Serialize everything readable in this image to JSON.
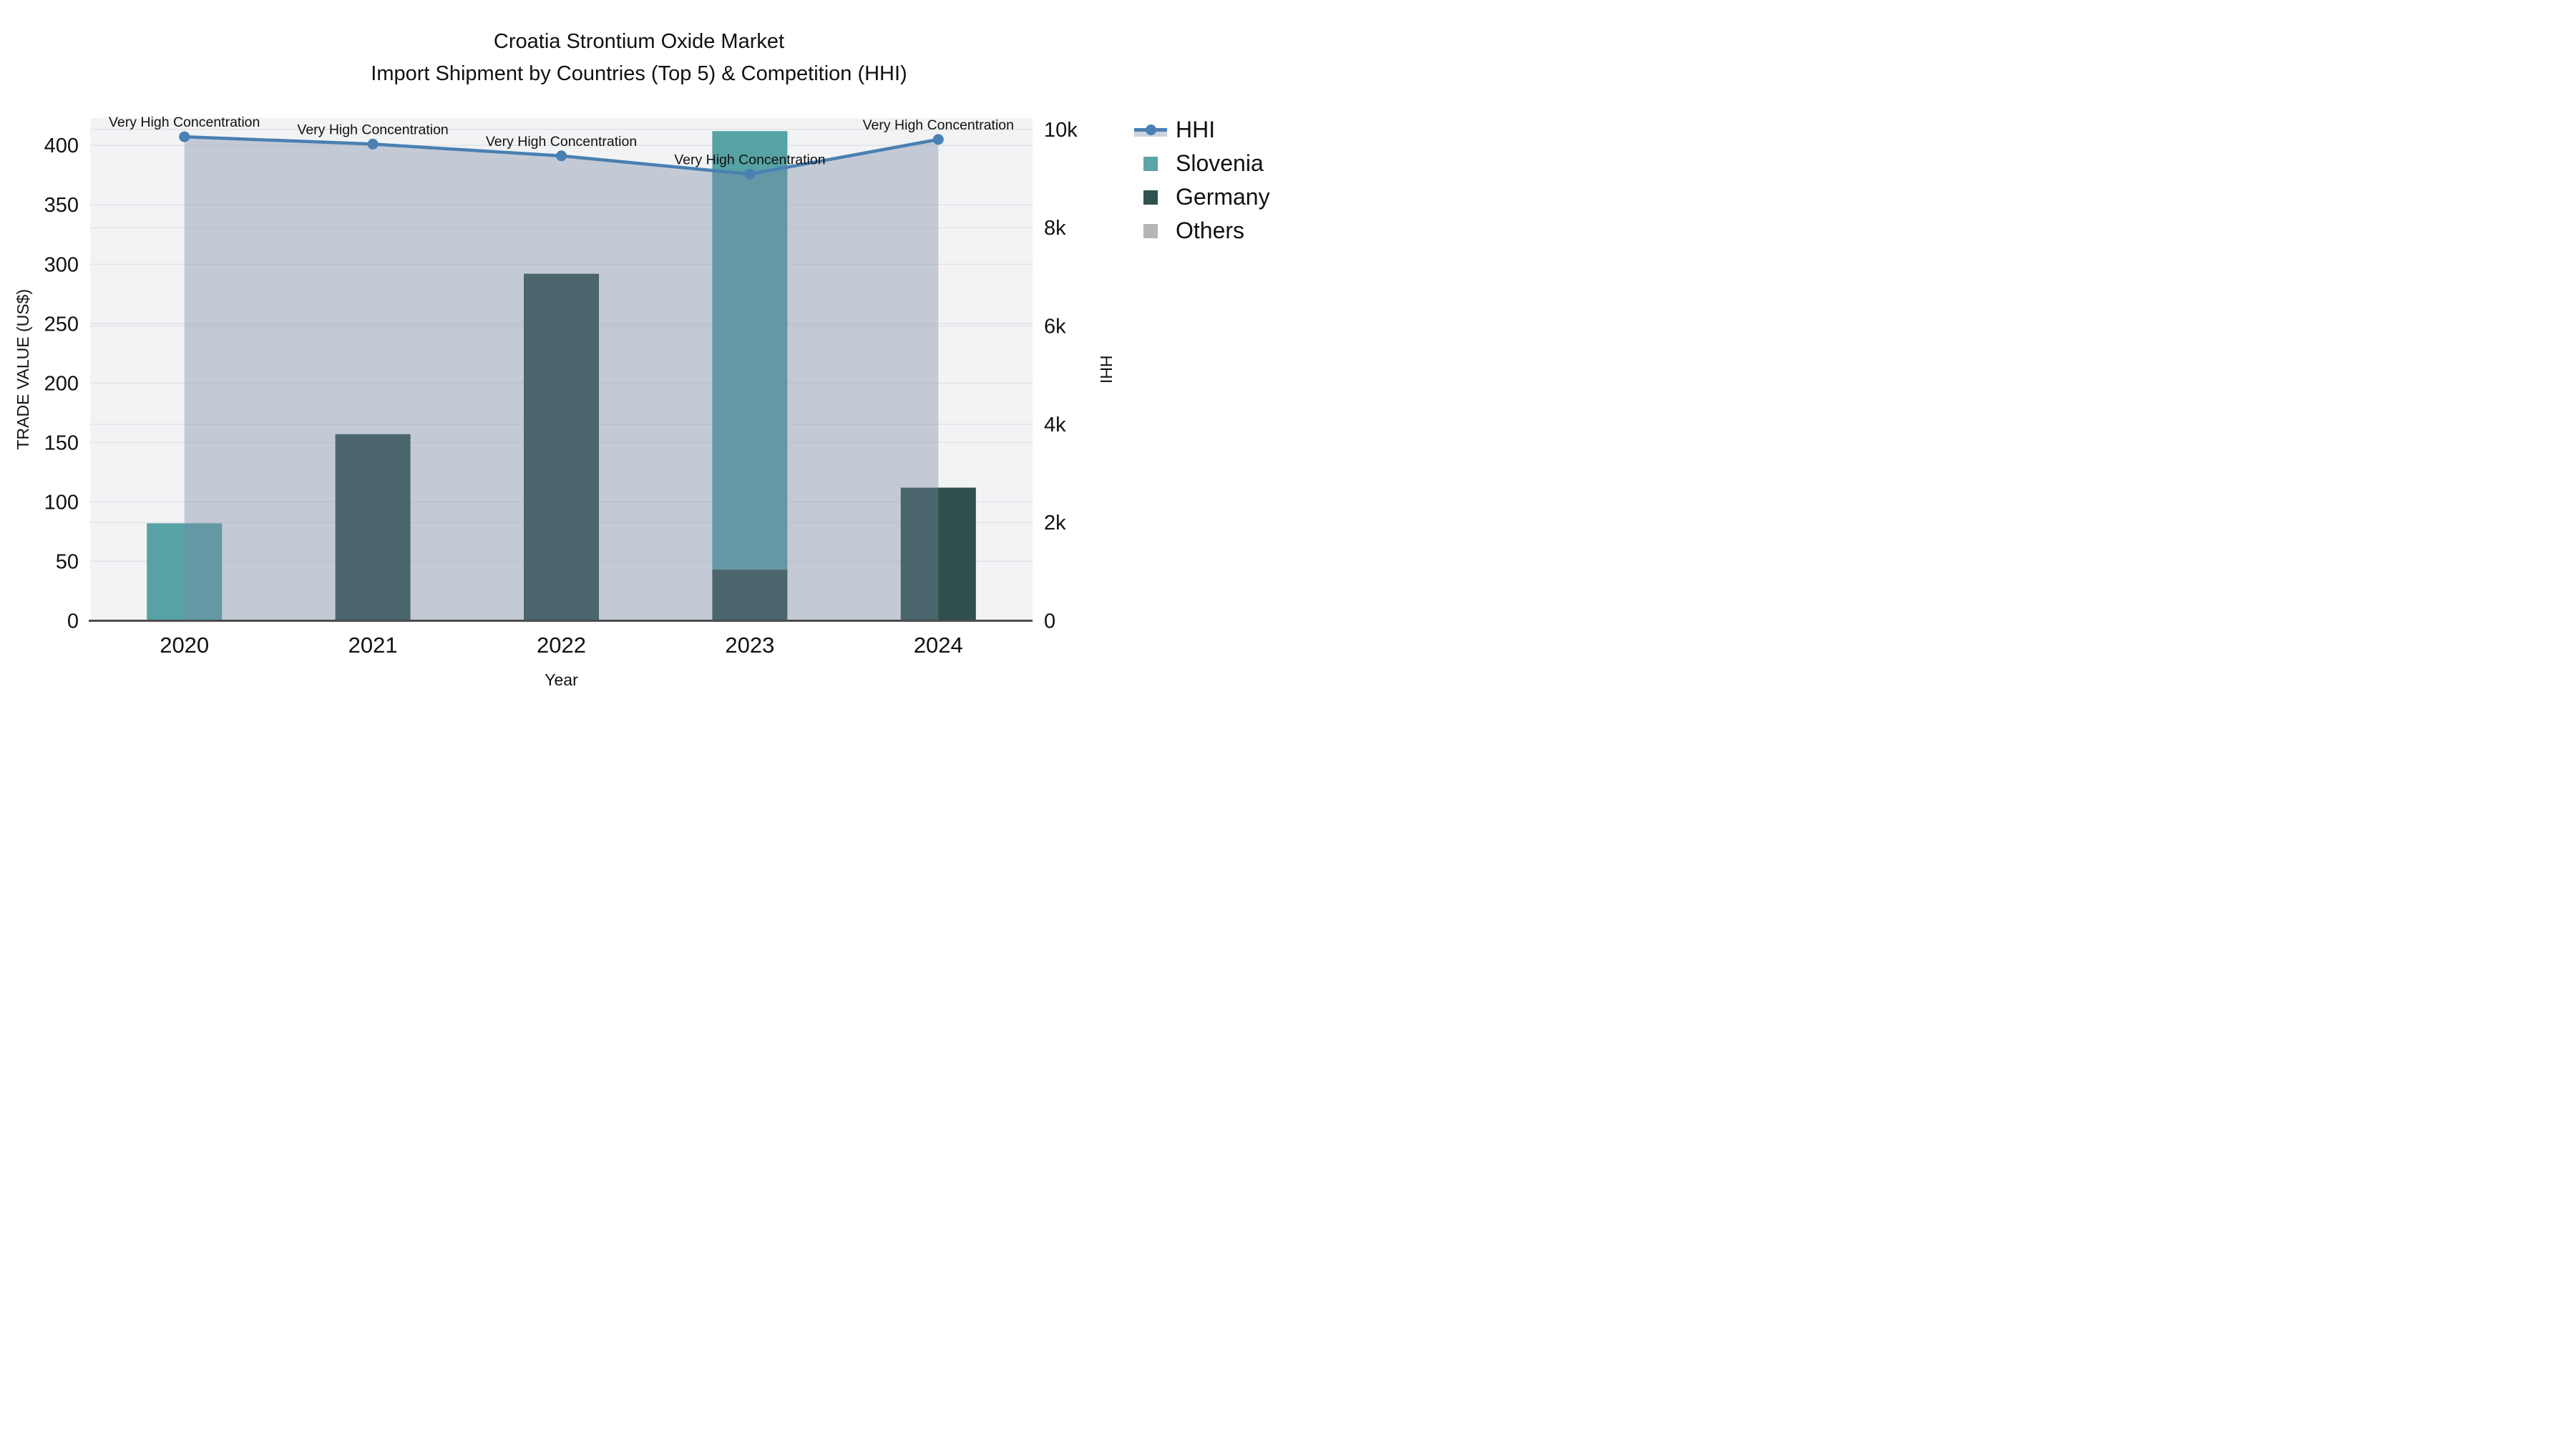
{
  "title": {
    "line1": "Croatia Strontium Oxide Market",
    "line2": "Import Shipment by Countries (Top 5) & Competition (HHI)"
  },
  "legend": {
    "items": [
      {
        "label": "HHI",
        "type": "line",
        "color": "#4a80b4",
        "fill": "#ccd2dc"
      },
      {
        "label": "Slovenia",
        "type": "square",
        "color": "#5ba4a7"
      },
      {
        "label": "Germany",
        "type": "square",
        "color": "#2f524f"
      },
      {
        "label": "Others",
        "type": "square",
        "color": "#b4b6b5"
      }
    ]
  },
  "axes": {
    "x": {
      "title": "Year",
      "ticks": [
        "2020",
        "2021",
        "2022",
        "2023",
        "2024"
      ]
    },
    "y_left": {
      "title": "TRADE VALUE (US$)",
      "ticks": [
        "0",
        "50",
        "100",
        "150",
        "200",
        "250",
        "300",
        "350",
        "400"
      ],
      "tick_values": [
        0,
        50,
        100,
        150,
        200,
        250,
        300,
        350,
        400
      ],
      "range": [
        0,
        423
      ]
    },
    "y_right": {
      "title": "HHI",
      "ticks": [
        "0",
        "2k",
        "4k",
        "6k",
        "8k",
        "10k"
      ],
      "tick_values": [
        0,
        2000,
        4000,
        6000,
        8000,
        10000
      ],
      "range": [
        0,
        10230
      ]
    }
  },
  "chart_data": {
    "type": "bar+line",
    "title": "Croatia Strontium Oxide Market — Import Shipment by Countries (Top 5) & Competition (HHI)",
    "xlabel": "Year",
    "ylabel_left": "TRADE VALUE (US$)",
    "ylabel_right": "HHI",
    "categories": [
      "2020",
      "2021",
      "2022",
      "2023",
      "2024"
    ],
    "bar_mode": "stack",
    "stack_order": [
      "Germany",
      "Slovenia",
      "Others"
    ],
    "series": [
      {
        "name": "Slovenia",
        "color": "#56a2a5",
        "values": [
          82,
          0,
          0,
          369,
          0
        ]
      },
      {
        "name": "Germany",
        "color": "#2f4f4d",
        "values": [
          0,
          157,
          292,
          43,
          112
        ]
      },
      {
        "name": "Others",
        "color": "#b4b4b4",
        "values": [
          0,
          0,
          0,
          0,
          0
        ]
      }
    ],
    "line_series": {
      "name": "HHI",
      "axis": "right",
      "color": "#4a80b2",
      "area_fill": "rgba(122,136,164,0.38)",
      "values": [
        9850,
        9700,
        9460,
        9090,
        9795
      ]
    },
    "annotations": {
      "text": "Very High Concentration",
      "per_line_point": true
    },
    "ylim_left": [
      0,
      423
    ],
    "ylim_right": [
      0,
      10230
    ],
    "grid": true,
    "legend_position": "right"
  },
  "colors": {
    "plot_bg": "#f2f3f4",
    "paper_bg": "#ffffff",
    "gridline": "#e2e4e7",
    "axis_line": "#4d4d4d",
    "text": "#111111"
  }
}
